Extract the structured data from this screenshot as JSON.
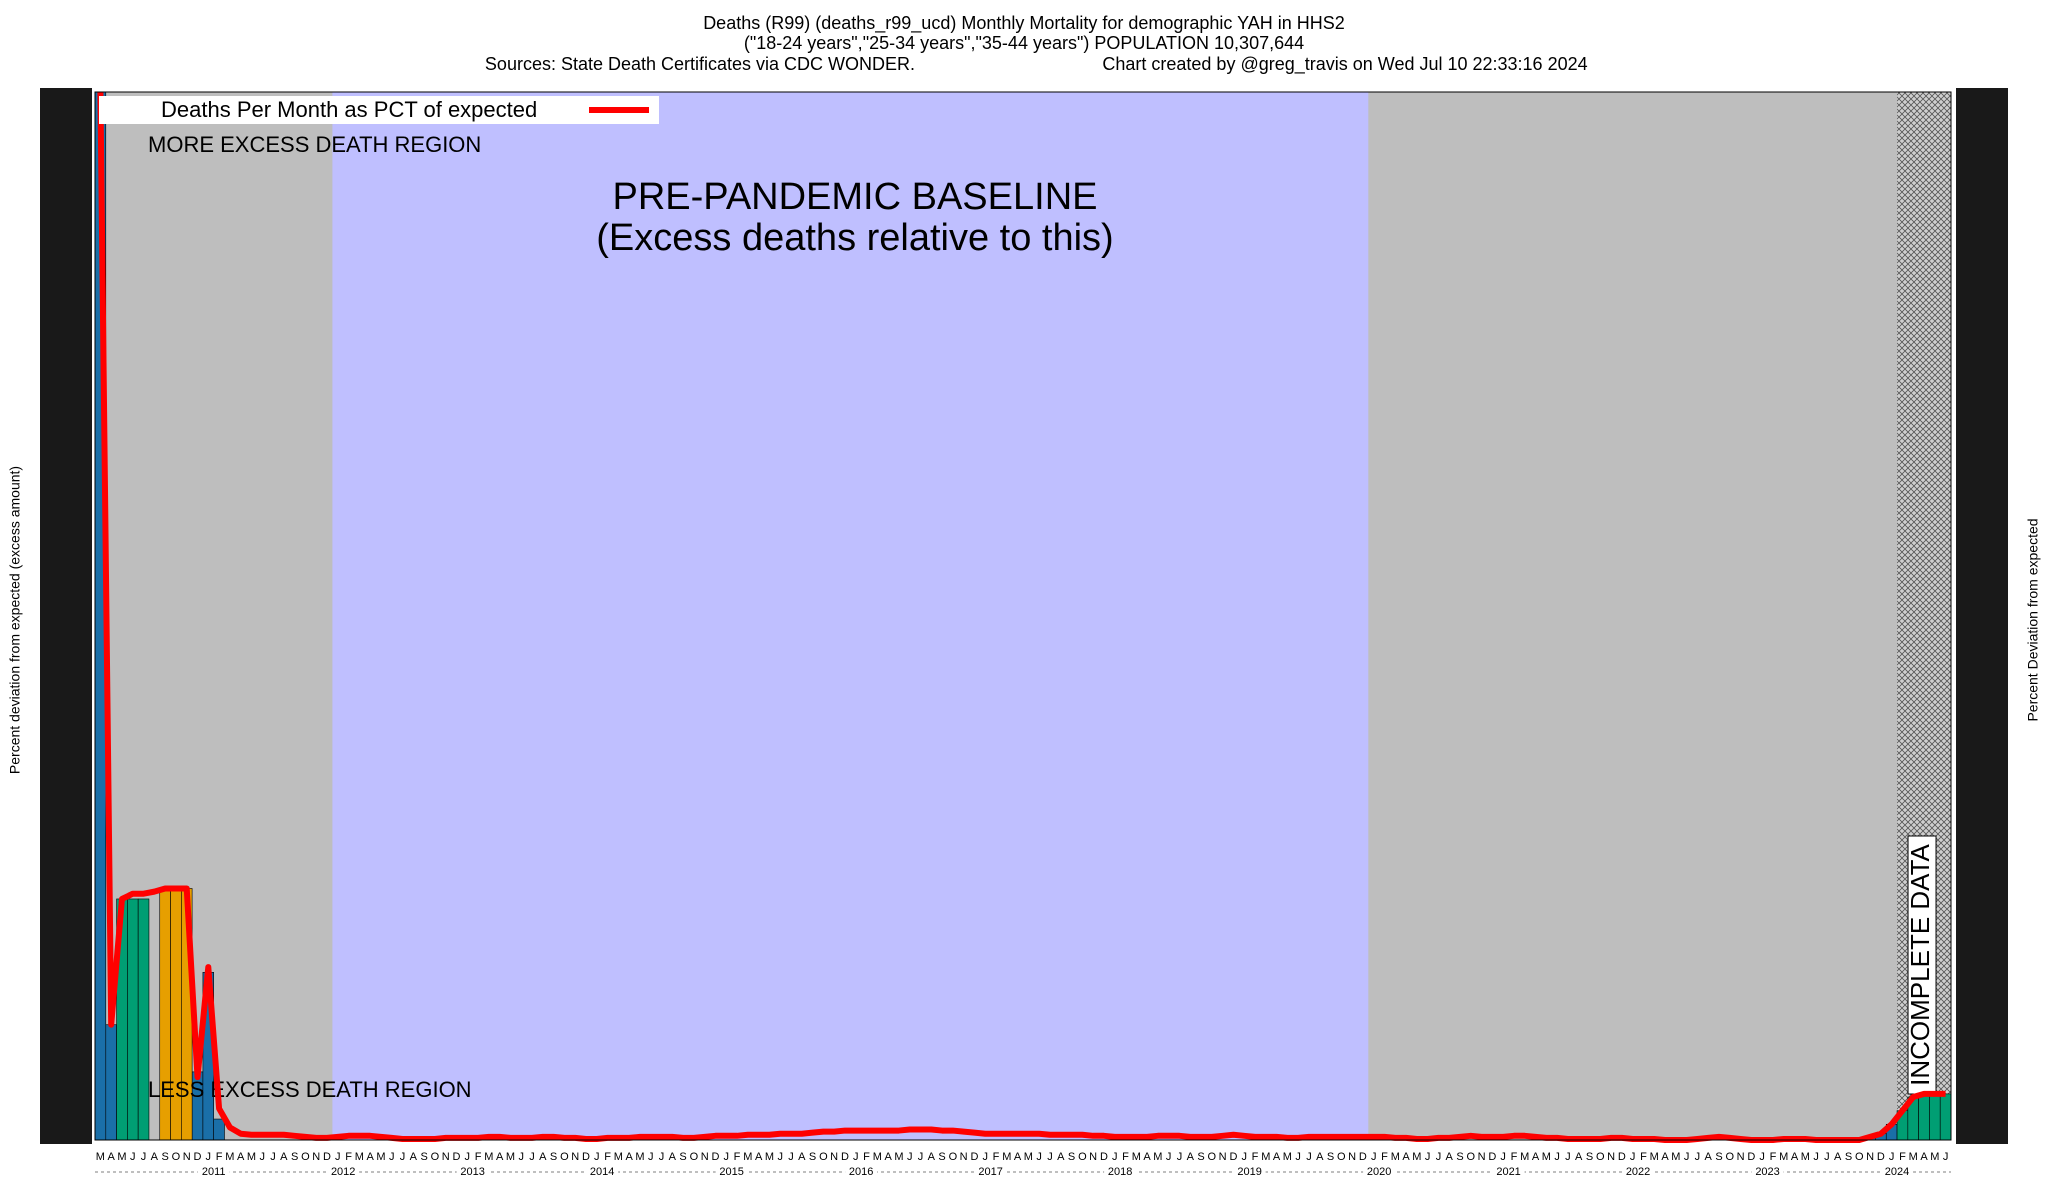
{
  "chart_data": {
    "type": "line",
    "title": "Deaths (R99) (deaths_r99_ucd) Monthly Mortality for demographic YAH in HHS2",
    "subtitle": "(\"18-24 years\",\"25-34 years\",\"35-44 years\") POPULATION 10,307,644",
    "source": "Sources: State Death Certificates via CDC WONDER.",
    "credit": "Chart created by @greg_travis on Wed Jul 10 22:33:16 2024",
    "y_label": "Percent deviation from expected (excess amount)",
    "y2_label": "Percent Deviation from expected",
    "annotations": {
      "more": "MORE EXCESS DEATH REGION",
      "less": "LESS EXCESS DEATH REGION",
      "baseline": "PRE-PANDEMIC BASELINE",
      "baseline_note": "(Excess deaths relative to this)",
      "incomplete": "INCOMPLETE DATA"
    },
    "legend": "upper left",
    "categories": [
      "M",
      "A",
      "M",
      "J",
      "J",
      "A",
      "S",
      "O",
      "N",
      "D",
      "J",
      "F",
      "M",
      "A",
      "M",
      "J",
      "J",
      "A",
      "S",
      "O",
      "N",
      "D",
      "J",
      "F",
      "M",
      "A",
      "M",
      "J",
      "J",
      "A",
      "S",
      "O",
      "N",
      "D",
      "J",
      "F",
      "M",
      "A",
      "M",
      "J",
      "J",
      "A",
      "S",
      "O",
      "N",
      "D",
      "J",
      "F",
      "M",
      "A",
      "M",
      "J",
      "J",
      "A",
      "S",
      "O",
      "N",
      "D",
      "J",
      "F",
      "M",
      "A",
      "M",
      "J",
      "J",
      "A",
      "S",
      "O",
      "N",
      "D",
      "J",
      "F",
      "M",
      "A",
      "M",
      "J",
      "J",
      "A",
      "S",
      "O",
      "N",
      "D",
      "J",
      "F",
      "M",
      "A",
      "M",
      "J",
      "J",
      "A",
      "S",
      "O",
      "N",
      "D",
      "J",
      "F",
      "M",
      "A",
      "M",
      "J",
      "J",
      "A",
      "S",
      "O",
      "N",
      "D",
      "J",
      "F",
      "M",
      "A",
      "M",
      "J",
      "J",
      "A",
      "S",
      "O",
      "N",
      "D",
      "J",
      "F",
      "M",
      "A",
      "M",
      "J",
      "J",
      "A",
      "S",
      "O",
      "N",
      "D",
      "J",
      "F",
      "M",
      "A",
      "M",
      "J",
      "J",
      "A",
      "S",
      "O",
      "N",
      "D",
      "J",
      "F",
      "M",
      "A",
      "M",
      "J",
      "J",
      "A",
      "S",
      "O",
      "N",
      "D",
      "J",
      "F",
      "M",
      "A",
      "M",
      "J",
      "J",
      "A",
      "S",
      "O",
      "N",
      "D",
      "J",
      "F",
      "M",
      "A",
      "M",
      "J"
    ],
    "years": [
      "2011",
      "2012",
      "2013",
      "2014",
      "2015",
      "2016",
      "2017",
      "2018",
      "2019",
      "2020",
      "2021",
      "2022",
      "2023",
      "2024"
    ],
    "baseline_years": [
      "2012",
      "2020"
    ],
    "incomplete_from": 167,
    "ylim": [
      0,
      100
    ],
    "series": [
      {
        "name": "Deaths Per Month as PCT of expected",
        "color": "#ff0000",
        "values": [
          100,
          11,
          23,
          23.5,
          23.5,
          23.7,
          24,
          24,
          24,
          6,
          16.5,
          3,
          1.2,
          0.6,
          0.5,
          0.5,
          0.5,
          0.5,
          0.4,
          0.3,
          0.2,
          0.2,
          0.3,
          0.4,
          0.4,
          0.4,
          0.3,
          0.2,
          0.1,
          0.1,
          0.1,
          0.1,
          0.2,
          0.2,
          0.2,
          0.2,
          0.3,
          0.3,
          0.2,
          0.2,
          0.2,
          0.3,
          0.3,
          0.2,
          0.2,
          0.1,
          0.1,
          0.2,
          0.2,
          0.2,
          0.3,
          0.3,
          0.3,
          0.3,
          0.2,
          0.2,
          0.3,
          0.4,
          0.4,
          0.4,
          0.5,
          0.5,
          0.5,
          0.6,
          0.6,
          0.6,
          0.7,
          0.8,
          0.8,
          0.9,
          0.9,
          0.9,
          0.9,
          0.9,
          0.9,
          1,
          1,
          1,
          0.9,
          0.9,
          0.8,
          0.7,
          0.6,
          0.6,
          0.6,
          0.6,
          0.6,
          0.6,
          0.5,
          0.5,
          0.5,
          0.5,
          0.4,
          0.4,
          0.3,
          0.3,
          0.3,
          0.3,
          0.4,
          0.4,
          0.4,
          0.3,
          0.3,
          0.3,
          0.4,
          0.5,
          0.4,
          0.3,
          0.3,
          0.3,
          0.2,
          0.2,
          0.3,
          0.3,
          0.3,
          0.3,
          0.3,
          0.3,
          0.3,
          0.3,
          0.2,
          0.2,
          0.1,
          0.1,
          0.2,
          0.2,
          0.3,
          0.4,
          0.3,
          0.3,
          0.3,
          0.4,
          0.4,
          0.3,
          0.2,
          0.2,
          0.1,
          0.1,
          0.1,
          0.1,
          0.2,
          0.2,
          0.1,
          0.1,
          0.1,
          0,
          0,
          0,
          0.1,
          0.2,
          0.3,
          0.2,
          0.1,
          0,
          0,
          0,
          0.1,
          0.1,
          0.1,
          0,
          0,
          0,
          0,
          0,
          0.3,
          0.6,
          1.5,
          2.8,
          4.1,
          4.4,
          4.4,
          4.4
        ]
      }
    ],
    "bars": [
      {
        "color": "#1a6fa8",
        "values": [
          100,
          11,
          null,
          null,
          null,
          null,
          null,
          null,
          null,
          6.5,
          16,
          2,
          null,
          null,
          null,
          null,
          null,
          null,
          null,
          null,
          null,
          null,
          null,
          null,
          null,
          null,
          null,
          null,
          null,
          null,
          null,
          null,
          null,
          null,
          null,
          null,
          null,
          null,
          null,
          null,
          null,
          null,
          null,
          null,
          null,
          null,
          null,
          null,
          null,
          null,
          null,
          null,
          null,
          null,
          null,
          null,
          null,
          null,
          null,
          null,
          null,
          null,
          null,
          null,
          null,
          null,
          null,
          null,
          null,
          null,
          null,
          null,
          null,
          null,
          null,
          null,
          null,
          null,
          null,
          null,
          null,
          null,
          null,
          null,
          null,
          null,
          null,
          null,
          null,
          null,
          null,
          null,
          null,
          null,
          null,
          null,
          null,
          null,
          null,
          null,
          null,
          null,
          null,
          null,
          null,
          null,
          null,
          null,
          null,
          null,
          null,
          null,
          null,
          null,
          null,
          null,
          null,
          null,
          null,
          null,
          null,
          null,
          null,
          null,
          null,
          null,
          null,
          null,
          null,
          null,
          null,
          null,
          null,
          null,
          null,
          null,
          null,
          null,
          null,
          null,
          null,
          null,
          null,
          null,
          null,
          null,
          null,
          null,
          null,
          null,
          null,
          null,
          null,
          null,
          null,
          null,
          null,
          null,
          null,
          null,
          null,
          null,
          null,
          null,
          0.3,
          0.6,
          1.5,
          null,
          null,
          null,
          null,
          null
        ]
      },
      {
        "color": "#009e73",
        "values": [
          null,
          null,
          23,
          23,
          23,
          null,
          null,
          null,
          null,
          null,
          null,
          null,
          null,
          null,
          null,
          null,
          null,
          null,
          null,
          null,
          null,
          null,
          null,
          null,
          null,
          null,
          null,
          null,
          null,
          null,
          null,
          null,
          null,
          null,
          null,
          null,
          null,
          null,
          null,
          null,
          null,
          null,
          null,
          null,
          null,
          null,
          null,
          null,
          null,
          null,
          null,
          null,
          null,
          null,
          null,
          null,
          null,
          null,
          null,
          null,
          null,
          null,
          null,
          null,
          null,
          null,
          null,
          null,
          null,
          null,
          null,
          null,
          null,
          null,
          null,
          null,
          null,
          null,
          null,
          null,
          null,
          null,
          null,
          null,
          null,
          null,
          null,
          null,
          null,
          null,
          null,
          null,
          null,
          null,
          null,
          null,
          null,
          null,
          null,
          null,
          null,
          null,
          null,
          null,
          null,
          null,
          null,
          null,
          null,
          null,
          null,
          null,
          null,
          null,
          null,
          null,
          null,
          null,
          null,
          null,
          null,
          null,
          null,
          null,
          null,
          null,
          null,
          null,
          null,
          null,
          null,
          null,
          null,
          null,
          null,
          null,
          null,
          null,
          null,
          null,
          null,
          null,
          null,
          null,
          null,
          null,
          null,
          null,
          null,
          null,
          null,
          null,
          null,
          null,
          null,
          null,
          null,
          null,
          null,
          null,
          null,
          null,
          null,
          null,
          null,
          null,
          null,
          2.8,
          4.1,
          4.4,
          4.4,
          4.4
        ]
      },
      {
        "color": "#e69f00",
        "values": [
          null,
          null,
          null,
          null,
          null,
          null,
          24,
          24,
          24,
          null,
          null,
          null,
          null,
          null,
          null,
          null,
          null,
          null,
          null,
          null,
          null,
          null,
          null,
          null,
          null,
          null,
          null,
          null,
          null,
          null,
          null,
          null,
          null,
          null,
          null,
          null,
          null,
          null,
          null,
          null,
          null,
          null,
          null,
          null,
          null,
          null,
          null,
          null,
          null,
          null,
          null,
          null,
          null,
          null,
          null,
          null,
          null,
          null,
          null,
          null,
          null,
          null,
          null,
          null,
          null,
          null,
          null,
          null,
          null,
          null,
          null,
          null,
          null,
          null,
          null,
          null,
          null,
          null,
          null,
          null,
          null,
          null,
          null,
          null,
          null,
          null,
          null,
          null,
          null,
          null,
          null,
          null,
          null,
          null,
          null,
          null,
          null,
          null,
          null,
          null,
          null,
          null,
          null,
          null,
          null,
          null,
          null,
          null,
          null,
          null,
          null,
          null,
          null,
          null,
          null,
          null,
          null,
          null,
          null,
          null,
          null,
          null,
          null,
          null,
          null,
          null,
          null,
          null,
          null,
          null,
          null,
          null,
          null,
          null,
          null,
          null,
          null,
          null,
          null,
          null,
          null,
          null,
          null,
          null,
          null,
          null,
          null,
          null,
          null,
          null,
          null,
          null,
          null,
          null,
          null,
          null,
          null,
          null,
          null,
          null,
          null,
          null,
          null,
          null,
          null,
          null,
          null,
          null,
          null,
          null,
          null,
          null
        ]
      }
    ],
    "region_colors": {
      "outside": "#bebebe",
      "baseline": "#bfbfff"
    }
  }
}
